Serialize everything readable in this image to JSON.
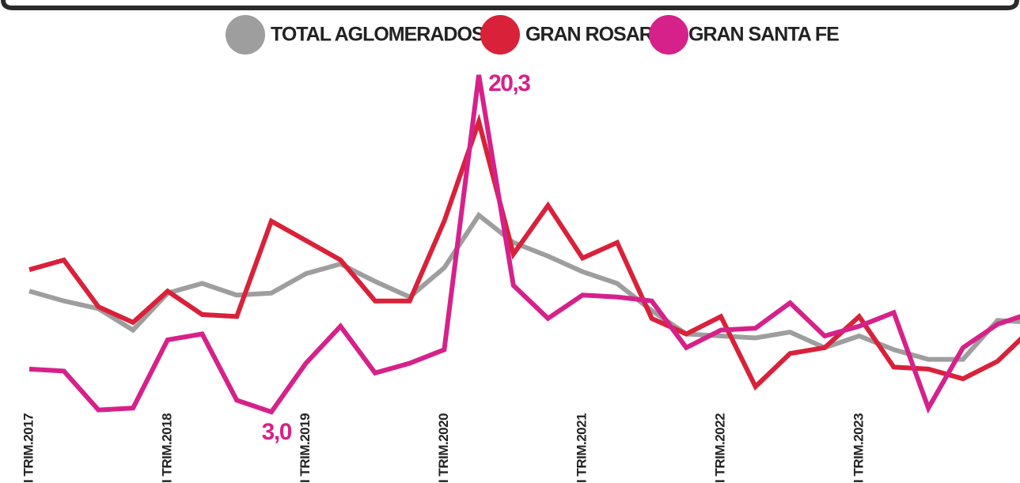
{
  "chart_data": {
    "type": "line",
    "categories": [
      "I TRIM.2017",
      null,
      null,
      null,
      "I TRIM.2018",
      null,
      null,
      null,
      "I TRIM.2019",
      null,
      null,
      null,
      "I TRIM.2020",
      null,
      null,
      null,
      "I TRIM.2021",
      null,
      null,
      null,
      "I TRIM.2022",
      null,
      null,
      null,
      "I TRIM.2023",
      null,
      null,
      null,
      null,
      null
    ],
    "series": [
      {
        "name": "TOTAL AGLOMERADOS",
        "color": "#9e9e9e",
        "values": [
          9.2,
          8.7,
          8.3,
          7.2,
          9.1,
          9.6,
          9.0,
          9.1,
          10.1,
          10.6,
          9.7,
          8.9,
          10.4,
          13.1,
          11.7,
          11.0,
          10.2,
          9.6,
          8.2,
          7.0,
          6.9,
          6.8,
          7.1,
          6.3,
          6.9,
          6.2,
          5.7,
          5.7,
          7.7,
          7.6
        ]
      },
      {
        "name": "GRAN ROSARIO",
        "color": "#d9213a",
        "values": [
          10.3,
          10.8,
          8.4,
          7.6,
          9.2,
          8.0,
          7.9,
          12.8,
          11.8,
          10.8,
          8.7,
          8.7,
          12.8,
          17.9,
          11.1,
          13.6,
          10.9,
          11.7,
          7.8,
          7.0,
          7.9,
          4.3,
          6.0,
          6.3,
          7.9,
          5.3,
          5.2,
          4.7,
          5.6,
          7.3
        ]
      },
      {
        "name": "GRAN SANTA FE",
        "color": "#d6218a",
        "values": [
          5.2,
          5.1,
          3.1,
          3.2,
          6.7,
          7.0,
          3.6,
          3.0,
          5.5,
          7.4,
          5.0,
          5.5,
          6.2,
          20.3,
          9.5,
          7.8,
          9.0,
          8.9,
          8.7,
          6.3,
          7.2,
          7.3,
          8.6,
          6.9,
          7.4,
          8.1,
          3.2,
          6.3,
          7.5,
          8.1
        ],
        "value_labels": [
          null,
          null,
          null,
          null,
          null,
          null,
          null,
          "3,0",
          null,
          null,
          null,
          null,
          null,
          "20,3",
          null,
          null,
          null,
          null,
          null,
          null,
          null,
          null,
          null,
          null,
          null,
          null,
          null,
          null,
          null,
          null
        ]
      }
    ],
    "ylim": [
      0,
      22
    ],
    "grid": false,
    "legend": "top"
  }
}
